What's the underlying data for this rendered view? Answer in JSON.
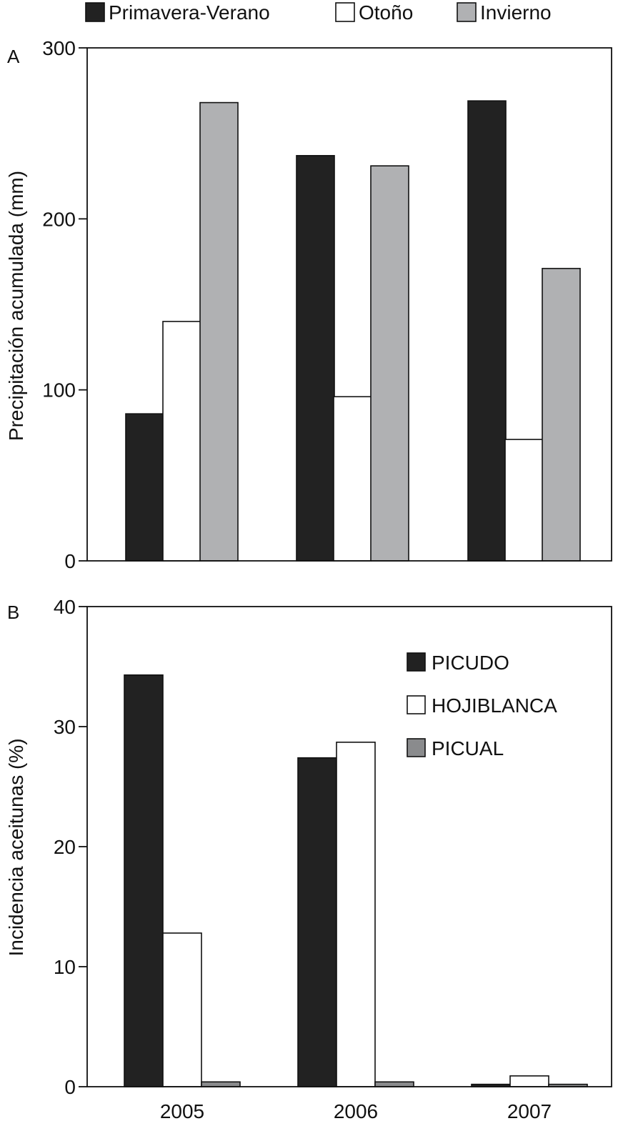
{
  "chart_data": [
    {
      "panel": "A",
      "type": "bar",
      "title": "",
      "xlabel": "",
      "ylabel": "Precipitación acumulada (mm)",
      "ylim": [
        0,
        300
      ],
      "yticks": [
        0,
        100,
        200,
        300
      ],
      "grid": false,
      "legend_placement": "top",
      "categories": [
        "2005",
        "2006",
        "2007"
      ],
      "series": [
        {
          "name": "Primavera-Verano",
          "color": "#222222",
          "values": [
            86,
            237,
            269
          ]
        },
        {
          "name": "Otoño",
          "color": "#ffffff",
          "values": [
            140,
            96,
            71
          ]
        },
        {
          "name": "Invierno",
          "color": "#b0b1b3",
          "values": [
            268,
            231,
            171
          ]
        }
      ]
    },
    {
      "panel": "B",
      "type": "bar",
      "title": "",
      "xlabel": "",
      "ylabel": "Incidencia aceitunas  (%)",
      "ylim": [
        0,
        40
      ],
      "yticks": [
        0,
        10,
        20,
        30,
        40
      ],
      "grid": false,
      "legend_placement": "top-right",
      "categories": [
        "2005",
        "2006",
        "2007"
      ],
      "series": [
        {
          "name": "PICUDO",
          "color": "#222222",
          "values": [
            34.3,
            27.4,
            0.2
          ]
        },
        {
          "name": "HOJIBLANCA",
          "color": "#ffffff",
          "values": [
            12.8,
            28.7,
            0.9
          ]
        },
        {
          "name": "PICUAL",
          "color": "#8a8b8d",
          "values": [
            0.4,
            0.4,
            0.2
          ]
        }
      ]
    }
  ]
}
